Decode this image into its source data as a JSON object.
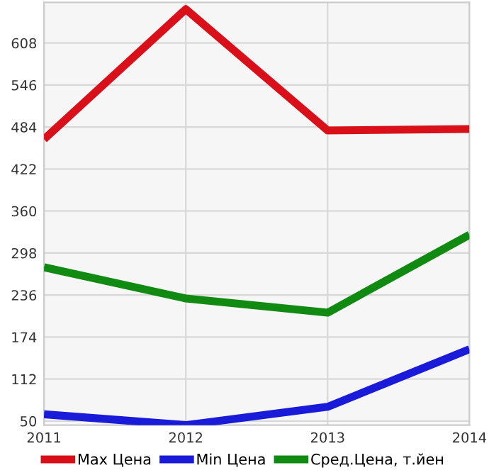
{
  "chart_data": {
    "type": "line",
    "x": [
      2011,
      2012,
      2013,
      2014
    ],
    "xlim": [
      2011,
      2014
    ],
    "xticks": [
      2011,
      2012,
      2013,
      2014
    ],
    "ylim": [
      44,
      668
    ],
    "yticks": [
      50,
      112,
      174,
      236,
      298,
      360,
      422,
      484,
      546,
      608
    ],
    "grid": true,
    "legend": "bottom",
    "marker": "none",
    "line_style": "solid",
    "series": [
      {
        "name": "Max Цена",
        "color": "#d9101a",
        "values": [
          466,
          658,
          479,
          481
        ]
      },
      {
        "name": "Min Цена",
        "color": "#1a1ad9",
        "values": [
          60,
          44,
          71,
          156
        ]
      },
      {
        "name": "Сред.Цена, т.йен",
        "color": "#108a10",
        "values": [
          277,
          231,
          210,
          325
        ]
      }
    ]
  }
}
